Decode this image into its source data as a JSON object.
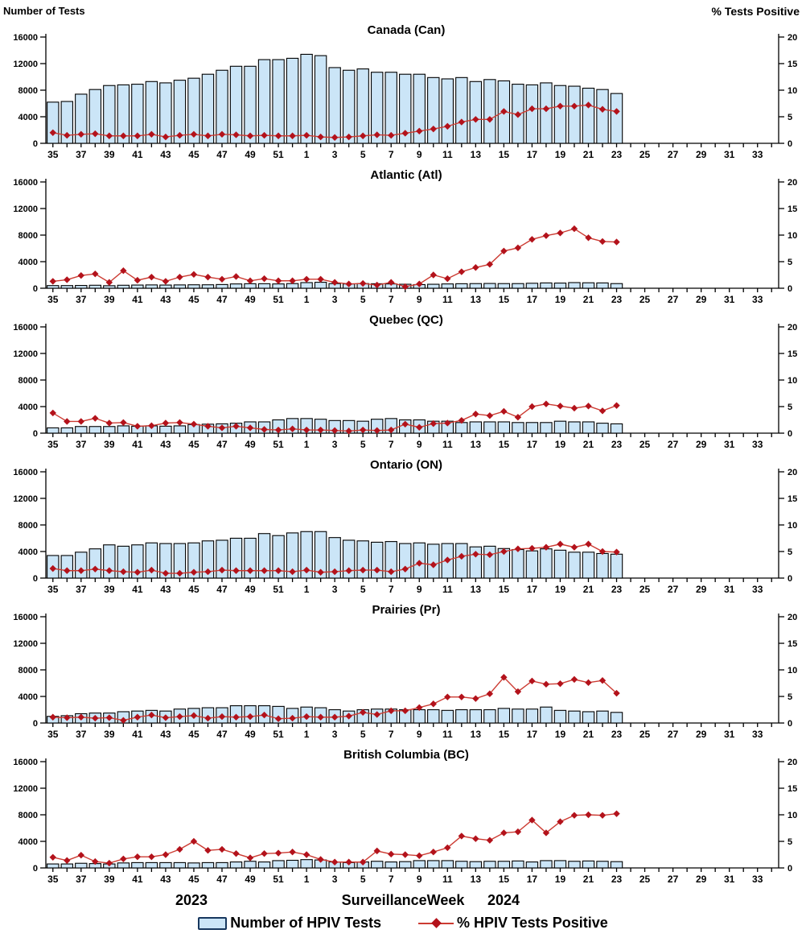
{
  "header": {
    "left_axis_title": "Number of Tests",
    "right_axis_title": "% Tests Positive"
  },
  "footer": {
    "year_left": "2023",
    "x_axis_label": "SurveillanceWeek",
    "year_right": "2024",
    "legend_bar_label": "Number of HPIV Tests",
    "legend_line_label": "% HPIV Tests Positive"
  },
  "colors": {
    "bar_fill": "#cbe5f7",
    "bar_border": "#000000",
    "line": "#cc3b32",
    "marker": "#b3121b",
    "legend_swatch_border": "#17375e",
    "axis": "#000000"
  },
  "x_axis": {
    "weeks": [
      35,
      36,
      37,
      38,
      39,
      40,
      41,
      42,
      43,
      44,
      45,
      46,
      47,
      48,
      49,
      50,
      51,
      52,
      1,
      2,
      3,
      4,
      5,
      6,
      7,
      8,
      9,
      10,
      11,
      12,
      13,
      14,
      15,
      16,
      17,
      18,
      19,
      20,
      21,
      22,
      23,
      24,
      25,
      26,
      27,
      28,
      29,
      30,
      31,
      32,
      33,
      34
    ],
    "labeled_weeks": [
      35,
      37,
      39,
      41,
      43,
      45,
      47,
      49,
      51,
      1,
      3,
      5,
      7,
      9,
      11,
      13,
      15,
      17,
      19,
      21,
      23,
      25,
      27,
      29,
      31,
      33
    ]
  },
  "chart_data": [
    {
      "type": "bar+line",
      "title": "Canada (Can)",
      "xlabel": "Surveillance Week",
      "ylabel_left": "Number of Tests",
      "ylabel_right": "% Tests Positive",
      "ylim_left": [
        0,
        16000
      ],
      "ylim_right": [
        0,
        20
      ],
      "yticks_left": [
        0,
        4000,
        8000,
        12000,
        16000
      ],
      "yticks_right": [
        0,
        5,
        10,
        15,
        20
      ],
      "categories": [
        35,
        36,
        37,
        38,
        39,
        40,
        41,
        42,
        43,
        44,
        45,
        46,
        47,
        48,
        49,
        50,
        51,
        52,
        1,
        2,
        3,
        4,
        5,
        6,
        7,
        8,
        9,
        10,
        11,
        12,
        13,
        14,
        15,
        16,
        17,
        18,
        19,
        20,
        21,
        22,
        23
      ],
      "bar_series": {
        "name": "Number of HPIV Tests",
        "values": [
          6200,
          6300,
          7400,
          8100,
          8700,
          8800,
          8900,
          9300,
          9100,
          9500,
          9800,
          10400,
          11000,
          11600,
          11600,
          12600,
          12600,
          12800,
          13400,
          13200,
          11400,
          11000,
          11200,
          10700,
          10700,
          10400,
          10400,
          9900,
          9700,
          9900,
          9300,
          9600,
          9400,
          8900,
          8800,
          9100,
          8700,
          8600,
          8300,
          8100,
          7500
        ]
      },
      "line_series": {
        "name": "% HPIV Tests Positive",
        "values": [
          2.0,
          1.5,
          1.7,
          1.8,
          1.4,
          1.4,
          1.4,
          1.7,
          1.2,
          1.5,
          1.7,
          1.4,
          1.7,
          1.6,
          1.4,
          1.5,
          1.4,
          1.4,
          1.5,
          1.2,
          1.1,
          1.2,
          1.4,
          1.6,
          1.5,
          1.9,
          2.3,
          2.7,
          3.2,
          4.0,
          4.5,
          4.5,
          6.0,
          5.4,
          6.5,
          6.5,
          7.0,
          7.0,
          7.2,
          6.4,
          6.0
        ]
      }
    },
    {
      "type": "bar+line",
      "title": "Atlantic (Atl)",
      "ylim_left": [
        0,
        16000
      ],
      "ylim_right": [
        0,
        20
      ],
      "yticks_left": [
        0,
        4000,
        8000,
        12000,
        16000
      ],
      "yticks_right": [
        0,
        5,
        10,
        15,
        20
      ],
      "categories": [
        35,
        36,
        37,
        38,
        39,
        40,
        41,
        42,
        43,
        44,
        45,
        46,
        47,
        48,
        49,
        50,
        51,
        52,
        1,
        2,
        3,
        4,
        5,
        6,
        7,
        8,
        9,
        10,
        11,
        12,
        13,
        14,
        15,
        16,
        17,
        18,
        19,
        20,
        21,
        22,
        23
      ],
      "bar_series": {
        "name": "Number of HPIV Tests",
        "values": [
          400,
          400,
          420,
          450,
          380,
          450,
          480,
          500,
          480,
          500,
          520,
          520,
          560,
          650,
          680,
          680,
          650,
          700,
          850,
          900,
          700,
          650,
          700,
          680,
          650,
          600,
          550,
          600,
          650,
          680,
          700,
          720,
          700,
          700,
          750,
          800,
          780,
          850,
          820,
          800,
          700
        ]
      },
      "line_series": {
        "name": "% HPIV Tests Positive",
        "values": [
          1.3,
          1.6,
          2.4,
          2.7,
          1.1,
          3.3,
          1.5,
          2.1,
          1.3,
          2.1,
          2.6,
          2.1,
          1.7,
          2.2,
          1.4,
          1.8,
          1.4,
          1.4,
          1.7,
          1.7,
          1.1,
          0.8,
          0.9,
          0.6,
          1.1,
          0.3,
          0.8,
          2.5,
          1.8,
          3.1,
          3.9,
          4.5,
          7.0,
          7.6,
          9.2,
          9.9,
          10.4,
          11.2,
          9.5,
          8.8,
          8.7
        ]
      }
    },
    {
      "type": "bar+line",
      "title": "Quebec (QC)",
      "ylim_left": [
        0,
        16000
      ],
      "ylim_right": [
        0,
        20
      ],
      "yticks_left": [
        0,
        4000,
        8000,
        12000,
        16000
      ],
      "yticks_right": [
        0,
        5,
        10,
        15,
        20
      ],
      "categories": [
        35,
        36,
        37,
        38,
        39,
        40,
        41,
        42,
        43,
        44,
        45,
        46,
        47,
        48,
        49,
        50,
        51,
        52,
        1,
        2,
        3,
        4,
        5,
        6,
        7,
        8,
        9,
        10,
        11,
        12,
        13,
        14,
        15,
        16,
        17,
        18,
        19,
        20,
        21,
        22,
        23
      ],
      "bar_series": {
        "name": "Number of HPIV Tests",
        "values": [
          800,
          800,
          1000,
          1000,
          1000,
          1100,
          1050,
          1100,
          1050,
          1100,
          1300,
          1350,
          1400,
          1500,
          1700,
          1700,
          2000,
          2200,
          2200,
          2100,
          1900,
          1900,
          1800,
          2100,
          2200,
          2000,
          2000,
          1800,
          1800,
          1600,
          1700,
          1700,
          1700,
          1600,
          1600,
          1600,
          1800,
          1700,
          1700,
          1500,
          1400
        ]
      },
      "line_series": {
        "name": "% HPIV Tests Positive",
        "values": [
          3.8,
          2.2,
          2.2,
          2.8,
          1.9,
          2.0,
          1.3,
          1.4,
          1.9,
          2.0,
          1.7,
          1.3,
          1.0,
          1.3,
          1.0,
          0.7,
          0.6,
          0.8,
          0.6,
          0.6,
          0.5,
          0.4,
          0.6,
          0.5,
          0.6,
          1.7,
          1.1,
          1.8,
          1.9,
          2.4,
          3.6,
          3.3,
          4.1,
          3.0,
          5.0,
          5.5,
          5.1,
          4.7,
          5.1,
          4.2,
          5.2
        ]
      }
    },
    {
      "type": "bar+line",
      "title": "Ontario (ON)",
      "ylim_left": [
        0,
        16000
      ],
      "ylim_right": [
        0,
        20
      ],
      "yticks_left": [
        0,
        4000,
        8000,
        12000,
        16000
      ],
      "yticks_right": [
        0,
        5,
        10,
        15,
        20
      ],
      "categories": [
        35,
        36,
        37,
        38,
        39,
        40,
        41,
        42,
        43,
        44,
        45,
        46,
        47,
        48,
        49,
        50,
        51,
        52,
        1,
        2,
        3,
        4,
        5,
        6,
        7,
        8,
        9,
        10,
        11,
        12,
        13,
        14,
        15,
        16,
        17,
        18,
        19,
        20,
        21,
        22,
        23
      ],
      "bar_series": {
        "name": "Number of HPIV Tests",
        "values": [
          3400,
          3400,
          3900,
          4400,
          5000,
          4800,
          5000,
          5300,
          5200,
          5200,
          5300,
          5600,
          5700,
          6000,
          6000,
          6700,
          6400,
          6800,
          7000,
          7000,
          6100,
          5700,
          5600,
          5400,
          5500,
          5200,
          5300,
          5100,
          5200,
          5200,
          4700,
          4800,
          4450,
          4300,
          4100,
          4400,
          4200,
          3900,
          3900,
          3700,
          3600
        ]
      },
      "line_series": {
        "name": "% HPIV Tests Positive",
        "values": [
          1.8,
          1.4,
          1.4,
          1.7,
          1.4,
          1.2,
          1.1,
          1.5,
          0.9,
          0.9,
          1.1,
          1.2,
          1.5,
          1.4,
          1.4,
          1.4,
          1.4,
          1.2,
          1.5,
          1.1,
          1.2,
          1.4,
          1.5,
          1.5,
          1.2,
          1.7,
          2.8,
          2.5,
          3.4,
          4.1,
          4.5,
          4.4,
          5.0,
          5.5,
          5.6,
          5.8,
          6.4,
          5.8,
          6.4,
          5.0,
          4.9
        ]
      }
    },
    {
      "type": "bar+line",
      "title": "Prairies (Pr)",
      "ylim_left": [
        0,
        16000
      ],
      "ylim_right": [
        0,
        20
      ],
      "yticks_left": [
        0,
        4000,
        8000,
        12000,
        16000
      ],
      "yticks_right": [
        0,
        5,
        10,
        15,
        20
      ],
      "categories": [
        35,
        36,
        37,
        38,
        39,
        40,
        41,
        42,
        43,
        44,
        45,
        46,
        47,
        48,
        49,
        50,
        51,
        52,
        1,
        2,
        3,
        4,
        5,
        6,
        7,
        8,
        9,
        10,
        11,
        12,
        13,
        14,
        15,
        16,
        17,
        18,
        19,
        20,
        21,
        22,
        23
      ],
      "bar_series": {
        "name": "Number of HPIV Tests",
        "values": [
          1000,
          1100,
          1400,
          1500,
          1500,
          1700,
          1800,
          1900,
          1800,
          2100,
          2200,
          2300,
          2300,
          2600,
          2600,
          2600,
          2500,
          2200,
          2400,
          2300,
          2000,
          1800,
          2000,
          2100,
          2100,
          2000,
          2000,
          2000,
          1900,
          2000,
          2000,
          2000,
          2200,
          2100,
          2100,
          2400,
          1900,
          1800,
          1700,
          1800,
          1600
        ]
      },
      "line_series": {
        "name": "% HPIV Tests Positive",
        "values": [
          1.1,
          1.0,
          1.1,
          0.9,
          1.0,
          0.5,
          1.1,
          1.5,
          1.0,
          1.2,
          1.4,
          0.9,
          1.2,
          1.1,
          1.2,
          1.5,
          0.8,
          0.9,
          1.2,
          1.1,
          1.1,
          1.3,
          2.0,
          1.6,
          2.3,
          2.3,
          2.9,
          3.6,
          4.9,
          4.9,
          4.6,
          5.5,
          8.6,
          5.9,
          7.9,
          7.3,
          7.4,
          8.2,
          7.6,
          8.0,
          5.6
        ]
      }
    },
    {
      "type": "bar+line",
      "title": "British Columbia (BC)",
      "ylim_left": [
        0,
        16000
      ],
      "ylim_right": [
        0,
        20
      ],
      "yticks_left": [
        0,
        4000,
        8000,
        12000,
        16000
      ],
      "yticks_right": [
        0,
        5,
        10,
        15,
        20
      ],
      "categories": [
        35,
        36,
        37,
        38,
        39,
        40,
        41,
        42,
        43,
        44,
        45,
        46,
        47,
        48,
        49,
        50,
        51,
        52,
        1,
        2,
        3,
        4,
        5,
        6,
        7,
        8,
        9,
        10,
        11,
        12,
        13,
        14,
        15,
        16,
        17,
        18,
        19,
        20,
        21,
        22,
        23
      ],
      "bar_series": {
        "name": "Number of HPIV Tests",
        "values": [
          600,
          600,
          700,
          650,
          600,
          750,
          800,
          800,
          800,
          800,
          750,
          800,
          800,
          900,
          1000,
          900,
          1100,
          1150,
          1250,
          1200,
          900,
          800,
          900,
          1000,
          900,
          950,
          1100,
          1100,
          1100,
          1000,
          950,
          1000,
          1000,
          1050,
          900,
          1100,
          1100,
          1000,
          1050,
          1000,
          950
        ]
      },
      "line_series": {
        "name": "% HPIV Tests Positive",
        "values": [
          2.0,
          1.4,
          2.4,
          1.2,
          0.9,
          1.7,
          2.1,
          2.1,
          2.5,
          3.5,
          5.0,
          3.3,
          3.5,
          2.7,
          1.9,
          2.7,
          2.8,
          3.0,
          2.5,
          1.6,
          1.1,
          1.1,
          1.1,
          3.2,
          2.6,
          2.5,
          2.3,
          3.0,
          3.8,
          6.0,
          5.5,
          5.2,
          6.6,
          6.8,
          9.0,
          6.6,
          8.7,
          9.9,
          10.0,
          9.9,
          10.2
        ]
      }
    }
  ]
}
